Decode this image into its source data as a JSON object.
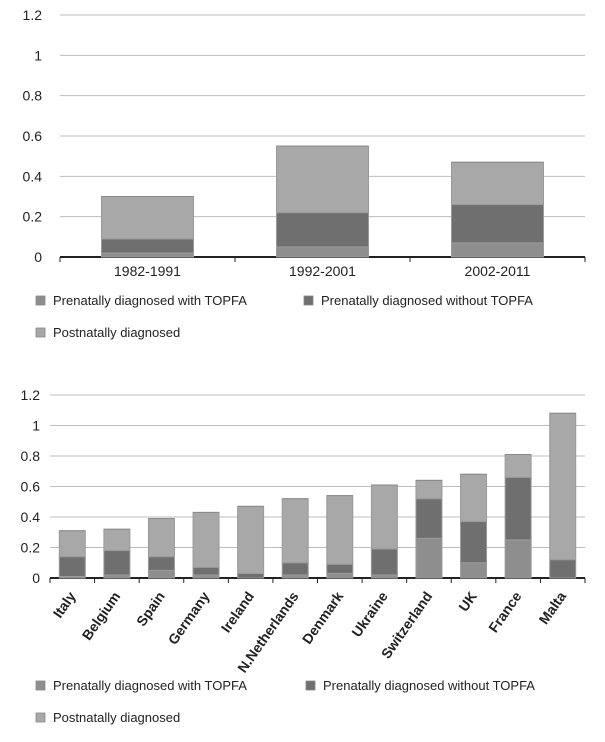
{
  "chart_data": [
    {
      "type": "bar",
      "stacked": true,
      "categories": [
        "1982-1991",
        "1992-2001",
        "2002-2011"
      ],
      "series": [
        {
          "name": "Prenatally diagnosed with TOPFA",
          "values": [
            0.02,
            0.05,
            0.07
          ],
          "color": "#8e8e8e"
        },
        {
          "name": "Prenatally diagnosed without TOPFA",
          "values": [
            0.07,
            0.17,
            0.19
          ],
          "color": "#6f6f6f"
        },
        {
          "name": "Postnatally diagnosed",
          "values": [
            0.21,
            0.33,
            0.21
          ],
          "color": "#a8a8a8"
        }
      ],
      "ylim": [
        0,
        1.2
      ],
      "yticks": [
        "0",
        "0.2",
        "0.4",
        "0.6",
        "0.8",
        "1",
        "1.2"
      ],
      "grid": true,
      "legend_position": "bottom"
    },
    {
      "type": "bar",
      "stacked": true,
      "categories": [
        "Italy",
        "Belgium",
        "Spain",
        "Germany",
        "Ireland",
        "N.Netherlands",
        "Denmark",
        "Ukraine",
        "Switzerland",
        "UK",
        "France",
        "Malta"
      ],
      "series": [
        {
          "name": "Prenatally diagnosed with TOPFA",
          "values": [
            0.01,
            0.02,
            0.05,
            0.02,
            0.0,
            0.02,
            0.03,
            0.02,
            0.26,
            0.1,
            0.25,
            0.0
          ],
          "color": "#8e8e8e"
        },
        {
          "name": "Prenatally diagnosed without TOPFA",
          "values": [
            0.13,
            0.16,
            0.09,
            0.05,
            0.03,
            0.08,
            0.06,
            0.17,
            0.26,
            0.27,
            0.41,
            0.12
          ],
          "color": "#6f6f6f"
        },
        {
          "name": "Postnatally diagnosed",
          "values": [
            0.17,
            0.14,
            0.25,
            0.36,
            0.44,
            0.42,
            0.45,
            0.42,
            0.12,
            0.31,
            0.15,
            0.96
          ],
          "color": "#a8a8a8"
        }
      ],
      "ylim": [
        0,
        1.2
      ],
      "yticks": [
        "0",
        "0.2",
        "0.4",
        "0.6",
        "0.8",
        "1",
        "1.2"
      ],
      "grid": true,
      "legend_position": "bottom"
    }
  ]
}
